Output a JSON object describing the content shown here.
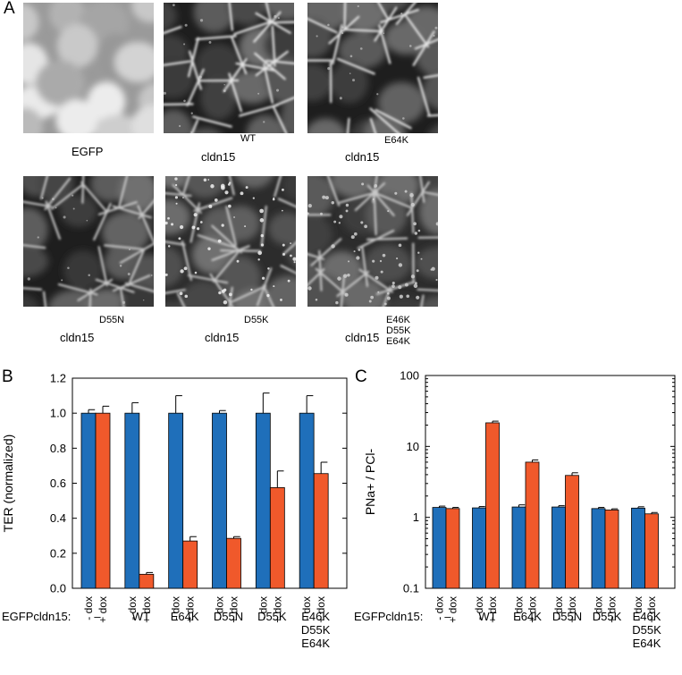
{
  "panels": {
    "a": "A",
    "b": "B",
    "c": "C"
  },
  "micrographs": [
    {
      "base": "EGFP",
      "sup": "",
      "sup_lines": [],
      "pattern": "diffuse"
    },
    {
      "base": "cldn15",
      "sup": "WT",
      "sup_lines": [],
      "pattern": "junction-bright"
    },
    {
      "base": "cldn15",
      "sup": "E64K",
      "sup_lines": [],
      "pattern": "junction-bright"
    },
    {
      "base": "cldn15",
      "sup": "D55N",
      "sup_lines": [],
      "pattern": "junction-dim"
    },
    {
      "base": "cldn15",
      "sup": "D55K",
      "sup_lines": [],
      "pattern": "punctate"
    },
    {
      "base": "cldn15",
      "sup": "",
      "sup_lines": [
        "E46K",
        "D55K",
        "E64K"
      ],
      "pattern": "punctate-soft"
    }
  ],
  "colors": {
    "minus_dox": "#1f6fba",
    "plus_dox": "#f0592b",
    "stroke": "#000000"
  },
  "chart_data": [
    {
      "type": "bar",
      "title": "",
      "ylabel": "TER (normalized)",
      "xlabel": "",
      "ylim": [
        0,
        1.2
      ],
      "yticks": [
        "0.0",
        "0.2",
        "0.4",
        "0.6",
        "0.8",
        "1.0",
        "1.2"
      ],
      "yscale": "linear",
      "row_label": "EGFPcldn15:",
      "categories": [
        "–",
        "WT",
        "E64K",
        "D55N",
        "D55K",
        [
          "E46K",
          "D55K",
          "E64K"
        ]
      ],
      "bar_labels": [
        "- dox",
        "+ dox"
      ],
      "series": [
        {
          "name": "- dox",
          "values": [
            1.0,
            1.0,
            1.0,
            1.0,
            1.0,
            1.0
          ],
          "errors": [
            0.02,
            0.06,
            0.1,
            0.015,
            0.115,
            0.1
          ]
        },
        {
          "name": "+ dox",
          "values": [
            1.0,
            0.08,
            0.27,
            0.285,
            0.575,
            0.655
          ],
          "errors": [
            0.04,
            0.01,
            0.025,
            0.01,
            0.095,
            0.065
          ]
        }
      ]
    },
    {
      "type": "bar",
      "title": "",
      "ylabel": "PNa+ / PCl-",
      "xlabel": "",
      "ylim": [
        0.1,
        100
      ],
      "yticks": [
        "0.1",
        "1",
        "10",
        "100"
      ],
      "yscale": "log",
      "row_label": "EGFPcldn15:",
      "categories": [
        "–",
        "WT",
        "E64K",
        "D55N",
        "D55K",
        [
          "E46K",
          "D55K",
          "E64K"
        ]
      ],
      "bar_labels": [
        "- dox",
        "+ dox"
      ],
      "series": [
        {
          "name": "- dox",
          "values": [
            1.38,
            1.36,
            1.4,
            1.4,
            1.33,
            1.35
          ],
          "errors": [
            0.06,
            0.06,
            0.1,
            0.06,
            0.05,
            0.06
          ]
        },
        {
          "name": "+ dox",
          "values": [
            1.33,
            21.5,
            6.0,
            3.9,
            1.27,
            1.12
          ],
          "errors": [
            0.05,
            1.2,
            0.45,
            0.35,
            0.05,
            0.05
          ]
        }
      ]
    }
  ]
}
